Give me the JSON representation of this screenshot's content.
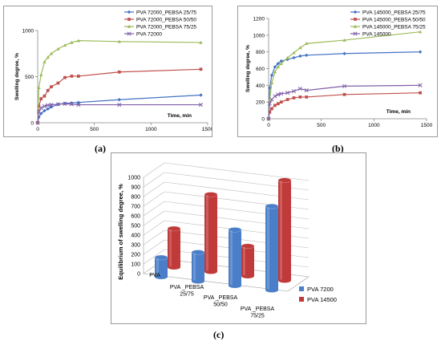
{
  "captions": [
    "(a)",
    "(b)",
    "(c)"
  ],
  "chart_data": [
    {
      "type": "line",
      "xlabel": "Time, min",
      "ylabel": "Swelling degree, %",
      "xlim": [
        0,
        1500
      ],
      "ylim": [
        0,
        1000
      ],
      "x_ticks": [
        0,
        500,
        1000,
        1500
      ],
      "y_ticks": [
        0,
        500,
        1000
      ],
      "legend_position": "top-right",
      "series": [
        {
          "name": "PVA 72000_PEBSA 25/75",
          "color": "#4472c4",
          "marker": "diamond",
          "x": [
            0,
            10,
            30,
            60,
            90,
            120,
            180,
            240,
            300,
            360,
            720,
            1440
          ],
          "y": [
            0,
            60,
            100,
            130,
            150,
            170,
            200,
            210,
            215,
            220,
            250,
            300
          ]
        },
        {
          "name": "PVA 72000_PEBSA 50/50",
          "color": "#c0504d",
          "marker": "square",
          "x": [
            0,
            10,
            30,
            60,
            90,
            120,
            180,
            240,
            300,
            360,
            720,
            1440
          ],
          "y": [
            0,
            180,
            260,
            290,
            350,
            390,
            430,
            490,
            505,
            505,
            550,
            580
          ]
        },
        {
          "name": "PVA 72000_PEBSA 75/25",
          "color": "#9bbb59",
          "marker": "triangle",
          "x": [
            0,
            10,
            30,
            60,
            90,
            120,
            180,
            240,
            300,
            360,
            720,
            1440
          ],
          "y": [
            0,
            380,
            520,
            660,
            710,
            750,
            800,
            840,
            870,
            890,
            880,
            870
          ]
        },
        {
          "name": "PVA 72000",
          "color": "#7f5fa8",
          "marker": "x",
          "x": [
            0,
            10,
            30,
            60,
            90,
            120,
            180,
            240,
            300,
            360,
            720,
            1440
          ],
          "y": [
            0,
            120,
            160,
            180,
            190,
            195,
            200,
            205,
            200,
            195,
            195,
            195
          ]
        }
      ]
    },
    {
      "type": "line",
      "xlabel": "Time, min",
      "ylabel": "Swelling degree, %",
      "xlim": [
        0,
        1500
      ],
      "ylim": [
        0,
        1200
      ],
      "x_ticks": [
        0,
        500,
        1000,
        1500
      ],
      "y_ticks": [
        0,
        200,
        400,
        600,
        800,
        1000,
        1200
      ],
      "legend_position": "top-right",
      "series": [
        {
          "name": "PVA 145000_PEBSA 25/75",
          "color": "#4472c4",
          "marker": "diamond",
          "x": [
            0,
            10,
            30,
            60,
            90,
            120,
            180,
            240,
            300,
            360,
            720,
            1440
          ],
          "y": [
            0,
            370,
            520,
            620,
            660,
            690,
            710,
            730,
            750,
            760,
            780,
            800
          ]
        },
        {
          "name": "PVA 145000_PEBSA 50/50",
          "color": "#c0504d",
          "marker": "square",
          "x": [
            0,
            10,
            30,
            60,
            90,
            120,
            180,
            240,
            300,
            360,
            720,
            1440
          ],
          "y": [
            0,
            80,
            120,
            160,
            180,
            200,
            230,
            250,
            260,
            260,
            290,
            310
          ]
        },
        {
          "name": "PVA 145000_PEBSA 75/25",
          "color": "#9bbb59",
          "marker": "triangle",
          "x": [
            0,
            10,
            30,
            60,
            90,
            120,
            180,
            240,
            300,
            360,
            720,
            1440
          ],
          "y": [
            0,
            220,
            430,
            560,
            620,
            660,
            730,
            790,
            850,
            900,
            940,
            1040
          ]
        },
        {
          "name": "PVA 145000",
          "color": "#7f5fa8",
          "marker": "x",
          "x": [
            0,
            10,
            30,
            60,
            90,
            120,
            180,
            240,
            300,
            360,
            720,
            1440
          ],
          "y": [
            0,
            180,
            230,
            270,
            290,
            300,
            310,
            330,
            360,
            340,
            390,
            400
          ]
        }
      ]
    },
    {
      "type": "bar",
      "variant": "3d-cylinder",
      "ylabel": "Equilibrium of swelling degree, %",
      "ylim": [
        0,
        1000
      ],
      "y_ticks": [
        0,
        100,
        200,
        300,
        400,
        500,
        600,
        700,
        800,
        900,
        1000
      ],
      "categories": [
        "PVA",
        "PVA _PEBSA\n25/75",
        "PVA _PEBSA\n50/50",
        "PVA _PEBSA\n75/25"
      ],
      "legend_position": "bottom-right",
      "series": [
        {
          "name": "PVA 7200",
          "color": "#4a7ec8",
          "values": [
            200,
            300,
            580,
            870
          ]
        },
        {
          "name": "PVA 14500",
          "color": "#c03a3a",
          "values": [
            400,
            800,
            310,
            1040
          ]
        }
      ]
    }
  ]
}
